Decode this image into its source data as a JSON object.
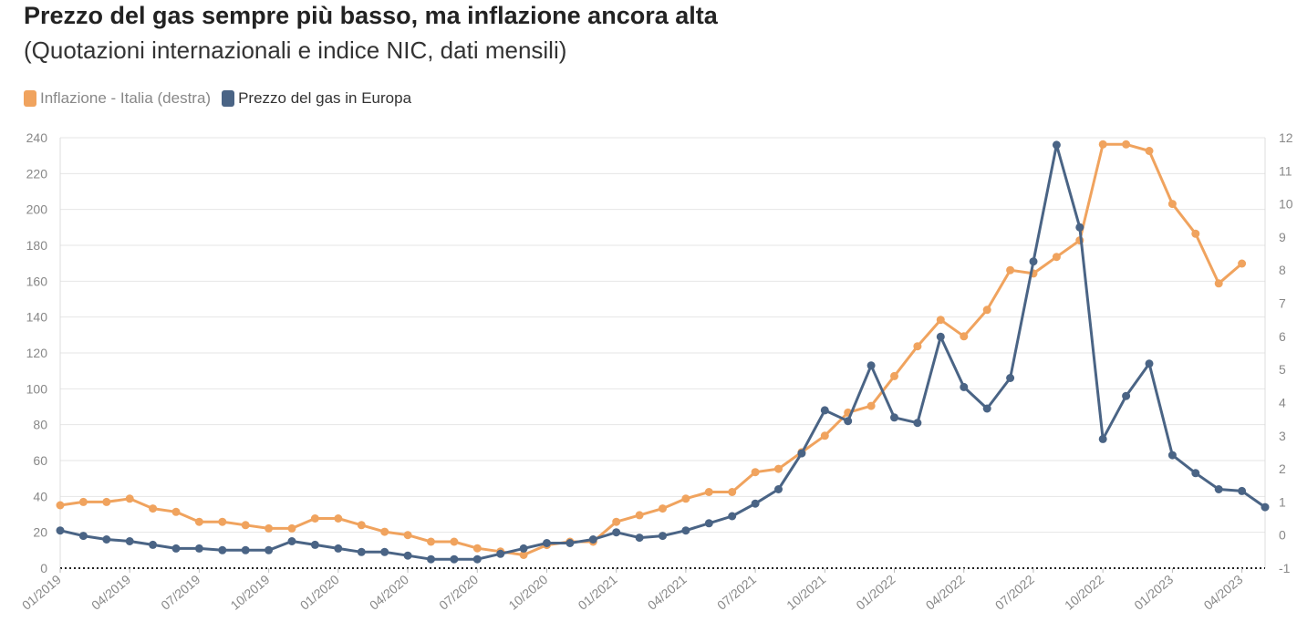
{
  "header": {
    "title": "Prezzo del gas sempre più basso, ma inflazione ancora alta",
    "subtitle": "(Quotazioni internazionali e indice NIC, dati mensili)"
  },
  "legend": [
    {
      "label": "Inflazione - Italia (destra)",
      "color": "#f0a35e",
      "text_color": "#888888"
    },
    {
      "label": "Prezzo del gas in Europa",
      "color": "#4a6485",
      "text_color": "#333333"
    }
  ],
  "chart_data": {
    "type": "line",
    "x": [
      "01/2019",
      "02/2019",
      "03/2019",
      "04/2019",
      "05/2019",
      "06/2019",
      "07/2019",
      "08/2019",
      "09/2019",
      "10/2019",
      "11/2019",
      "12/2019",
      "01/2020",
      "02/2020",
      "03/2020",
      "04/2020",
      "05/2020",
      "06/2020",
      "07/2020",
      "08/2020",
      "09/2020",
      "10/2020",
      "11/2020",
      "12/2020",
      "01/2021",
      "02/2021",
      "03/2021",
      "04/2021",
      "05/2021",
      "06/2021",
      "07/2021",
      "08/2021",
      "09/2021",
      "10/2021",
      "11/2021",
      "12/2021",
      "01/2022",
      "02/2022",
      "03/2022",
      "04/2022",
      "05/2022",
      "06/2022",
      "07/2022",
      "08/2022",
      "09/2022",
      "10/2022",
      "11/2022",
      "12/2022",
      "01/2023",
      "02/2023",
      "03/2023",
      "04/2023",
      "05/2023"
    ],
    "x_tick_labels": [
      "01/2019",
      "04/2019",
      "07/2019",
      "10/2019",
      "01/2020",
      "04/2020",
      "07/2020",
      "10/2020",
      "01/2021",
      "04/2021",
      "07/2021",
      "10/2021",
      "01/2022",
      "04/2022",
      "07/2022",
      "10/2022",
      "01/2023",
      "04/2023"
    ],
    "y_left": {
      "min": 0,
      "max": 240,
      "ticks": [
        0,
        20,
        40,
        60,
        80,
        100,
        120,
        140,
        160,
        180,
        200,
        220,
        240
      ]
    },
    "y_right": {
      "min": -1,
      "max": 12,
      "ticks": [
        -1,
        0,
        1,
        2,
        3,
        4,
        5,
        6,
        7,
        8,
        9,
        10,
        11,
        12
      ]
    },
    "series": [
      {
        "name": "Inflazione - Italia (destra)",
        "axis": "right",
        "color": "#f0a35e",
        "values": [
          0.9,
          1.0,
          1.0,
          1.1,
          0.8,
          0.7,
          0.4,
          0.4,
          0.3,
          0.2,
          0.2,
          0.5,
          0.5,
          0.3,
          0.1,
          0.0,
          -0.2,
          -0.2,
          -0.4,
          -0.5,
          -0.6,
          -0.3,
          -0.2,
          -0.2,
          0.4,
          0.6,
          0.8,
          1.1,
          1.3,
          1.3,
          1.9,
          2.0,
          2.5,
          3.0,
          3.7,
          3.9,
          4.8,
          5.7,
          6.5,
          6.0,
          6.8,
          8.0,
          7.9,
          8.4,
          8.9,
          11.8,
          11.8,
          11.6,
          10.0,
          9.1,
          7.6,
          8.2,
          null
        ]
      },
      {
        "name": "Prezzo del gas in Europa",
        "axis": "left",
        "color": "#4a6485",
        "values": [
          21,
          18,
          16,
          15,
          13,
          11,
          11,
          10,
          10,
          10,
          15,
          13,
          11,
          9,
          9,
          7,
          5,
          5,
          5,
          8,
          11,
          14,
          14,
          16,
          20,
          17,
          18,
          21,
          25,
          29,
          36,
          44,
          64,
          88,
          82,
          113,
          84,
          81,
          129,
          101,
          89,
          106,
          171,
          236,
          190,
          72,
          96,
          114,
          63,
          53,
          44,
          43,
          34
        ]
      }
    ],
    "zero_line": {
      "right_axis_value": -1,
      "style": "dotted"
    }
  }
}
